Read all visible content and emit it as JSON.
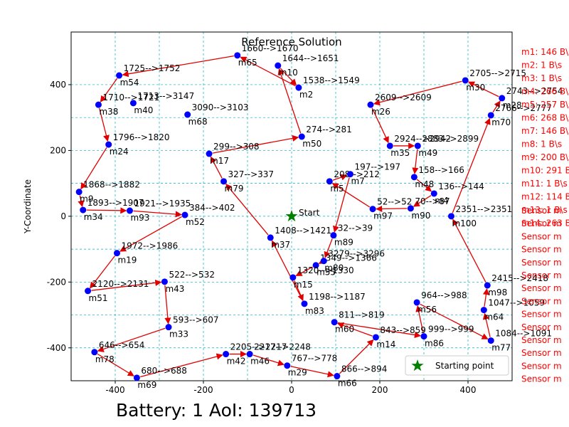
{
  "chart_data": {
    "type": "route",
    "title": "Reference Solution",
    "y_label": "Y-Coordinate",
    "footer": "Battery: 1   AoI: 139713",
    "xlim": [
      -500,
      500
    ],
    "ylim": [
      -500,
      560
    ],
    "xticks": [
      -400,
      -200,
      0,
      200,
      400
    ],
    "yticks": [
      -400,
      -200,
      0,
      200,
      400
    ],
    "minor_xticks": [
      -300,
      -100,
      100,
      300
    ],
    "minor_yticks": [
      -300,
      -100,
      100,
      300
    ],
    "grid": true,
    "node_color": "#0000ff",
    "edge_color": "#e00000",
    "start": {
      "x": 0,
      "y": 0,
      "label": "Start",
      "color": "#008000"
    },
    "legend": {
      "label": "Starting point",
      "loc": "lower right"
    },
    "nodes": [
      {
        "name": "m54",
        "x": -391,
        "y": 428,
        "label": "1725-->1752"
      },
      {
        "name": "m65",
        "x": -123,
        "y": 489,
        "label": "1660-->1670"
      },
      {
        "name": "m10",
        "x": -31,
        "y": 458,
        "label": "1644-->1651"
      },
      {
        "name": "m38",
        "x": -438,
        "y": 339,
        "label": "1710-->1721"
      },
      {
        "name": "m40",
        "x": -359,
        "y": 344,
        "label": "1713-->3147"
      },
      {
        "name": "m68",
        "x": -236,
        "y": 309,
        "label": "3090-->3103"
      },
      {
        "name": "m24",
        "x": -415,
        "y": 218,
        "label": "1796-->1820"
      },
      {
        "name": "m17",
        "x": -187,
        "y": 190,
        "label": "299-->308"
      },
      {
        "name": "m50",
        "x": 23,
        "y": 242,
        "label": "274-->281"
      },
      {
        "name": "m79",
        "x": -154,
        "y": 106,
        "label": "327-->337"
      },
      {
        "name": "m9",
        "x": -482,
        "y": 74,
        "label": "1868-->1882"
      },
      {
        "name": "m34",
        "x": -473,
        "y": 19,
        "label": "1893-->1907"
      },
      {
        "name": "m93",
        "x": -367,
        "y": 17,
        "label": "1921-->1935"
      },
      {
        "name": "m52",
        "x": -242,
        "y": 4,
        "label": "384-->402"
      },
      {
        "name": "m26",
        "x": 179,
        "y": 339,
        "label": "2609-->2609"
      },
      {
        "name": "m35",
        "x": 223,
        "y": 214,
        "label": "2924-->2942"
      },
      {
        "name": "m49",
        "x": 286,
        "y": 214,
        "label": "2883-->2899"
      },
      {
        "name": "m48",
        "x": 278,
        "y": 119,
        "label": "158-->166"
      },
      {
        "name": "m4",
        "x": 323,
        "y": 69,
        "label": "136-->144"
      },
      {
        "name": "m90",
        "x": 270,
        "y": 24,
        "label": "70-->87"
      },
      {
        "name": "m100",
        "x": 362,
        "y": 0,
        "label": "2351-->2351"
      },
      {
        "name": "m30",
        "x": 394,
        "y": 413,
        "label": "2705-->2715"
      },
      {
        "name": "m28",
        "x": 477,
        "y": 359,
        "label": "2743-->2754"
      },
      {
        "name": "m70",
        "x": 452,
        "y": 307,
        "label": "2766-->2777"
      },
      {
        "name": "m98",
        "x": 444,
        "y": -210,
        "label": "2415-->2418"
      },
      {
        "name": "m64",
        "x": 436,
        "y": -285,
        "label": "1047-->1059"
      },
      {
        "name": "m77",
        "x": 452,
        "y": -378,
        "label": "1084-->1091"
      },
      {
        "name": "m86",
        "x": 300,
        "y": -365,
        "label": "999-->999"
      },
      {
        "name": "m56",
        "x": 284,
        "y": -262,
        "label": "964-->988"
      },
      {
        "name": "m14",
        "x": 191,
        "y": -368,
        "label": "843-->859"
      },
      {
        "name": "m66",
        "x": 103,
        "y": -486,
        "label": "866-->894"
      },
      {
        "name": "m29",
        "x": -10,
        "y": -454,
        "label": "767-->778"
      },
      {
        "name": "m46",
        "x": -95,
        "y": -419,
        "label": "2217-->2248"
      },
      {
        "name": "m42",
        "x": -149,
        "y": -419,
        "label": "2205-->2217"
      },
      {
        "name": "m69",
        "x": -351,
        "y": -491,
        "label": "680-->688"
      },
      {
        "name": "m78",
        "x": -447,
        "y": -413,
        "label": "646-->654"
      },
      {
        "name": "m33",
        "x": -279,
        "y": -337,
        "label": "593-->607"
      },
      {
        "name": "m51",
        "x": -462,
        "y": -227,
        "label": "2120-->2131"
      },
      {
        "name": "m19",
        "x": -396,
        "y": -112,
        "label": "1972-->1986"
      },
      {
        "name": "m43",
        "x": -288,
        "y": -199,
        "label": "522-->532"
      },
      {
        "name": "m37",
        "x": -48,
        "y": -65,
        "label": "1408-->1421"
      },
      {
        "name": "m55",
        "x": 55,
        "y": -149,
        "label": "1349-->1366"
      },
      {
        "name": "m15",
        "x": 3,
        "y": -186,
        "label": "1320-->1330"
      },
      {
        "name": "m83",
        "x": 29,
        "y": -266,
        "label": "1198-->1187"
      },
      {
        "name": "m97",
        "x": 184,
        "y": 22,
        "label": "52-->52"
      },
      {
        "name": "m89",
        "x": 95,
        "y": -58,
        "label": "32-->39"
      },
      {
        "name": "m80",
        "x": 73,
        "y": -136,
        "label": "3279-->3296"
      },
      {
        "name": "m60",
        "x": 97,
        "y": -322,
        "label": "811-->819"
      },
      {
        "name": "m5",
        "x": 86,
        "y": 106,
        "label": "208-->212"
      },
      {
        "name": "m7",
        "x": 133,
        "y": 128,
        "label": "197-->197"
      },
      {
        "name": "m2",
        "x": 16,
        "y": 391,
        "label": "1538-->1549"
      }
    ],
    "route": [
      40,
      9,
      7,
      8,
      2,
      50,
      1,
      0,
      3,
      6,
      10,
      11,
      12,
      13,
      38,
      37,
      39,
      36,
      35,
      34,
      33,
      32,
      31,
      30,
      29,
      47,
      27,
      28,
      26,
      25,
      24,
      20,
      23,
      22,
      21,
      14,
      15,
      16,
      17,
      18,
      19,
      44,
      48,
      49,
      45,
      46,
      41,
      42,
      43,
      40
    ],
    "side_list_color": "#ff0000",
    "side_list": [
      "m1: 146 B\\s",
      "m2: 1 B\\s",
      "m3: 1 B\\s",
      "m4: 266 B\\s",
      "m5: 257 B\\s",
      "m6: 268 B\\s",
      "m7: 146 B\\s",
      "m8: 1 B\\s",
      "m9: 200 B\\s",
      "m10: 291 B\\s",
      "m11: 1 B\\s",
      "m12: 114 B\\s",
      "m13: 1 B\\s",
      "m14: 263 B\\s"
    ],
    "sensor_list": [
      "Sensor m",
      "Sensor m",
      "Sensor m",
      "Sensor m",
      "Sensor m",
      "Sensor m",
      "Sensor m",
      "Sensor m",
      "Sensor m",
      "Sensor m",
      "Sensor m",
      "Sensor m",
      "Sensor m",
      "Sensor m"
    ]
  }
}
